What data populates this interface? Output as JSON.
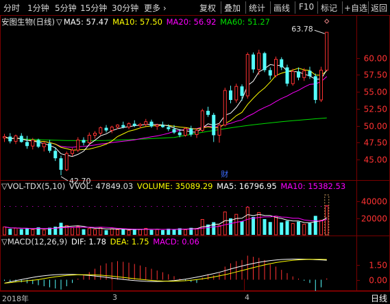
{
  "toolbar": {
    "left": [
      "分时",
      "1分钟",
      "5分钟",
      "15分钟",
      "30分钟",
      "更多 ›"
    ],
    "right": [
      "复权",
      "叠加",
      "统计",
      "画线",
      "F10",
      "标记",
      "+自选",
      "返回"
    ]
  },
  "main_panel": {
    "title": "安图生物(日线)",
    "marker": "▽",
    "ma5": "MA5: 57.47",
    "ma10": "MA10: 57.50",
    "ma20": "MA20: 56.92",
    "ma60": "MA60: 51.27",
    "high_label": "63.78",
    "low_label": "42.70",
    "event_marker": "财"
  },
  "volume_panel": {
    "title": "▽VOL-TDX(5,10)",
    "vvol": "VVOL: 47849.03",
    "volume": "VOLUME: 35089.29",
    "ma5": "MA5: 16796.95",
    "ma10": "MA10: 15382.53"
  },
  "macd_panel": {
    "title": "▽MACD(12,26,9)",
    "dif": "DIF: 1.78",
    "dea": "DEA: 1.75",
    "macd": "MACD: 0.06"
  },
  "date_axis": {
    "labels": [
      "2018年",
      "3",
      "4"
    ],
    "period": "日线"
  },
  "colors": {
    "up": "#ff3232",
    "down": "#54fcfc",
    "ma5": "#ffffff",
    "ma10": "#ffff00",
    "ma20": "#ff00ff",
    "ma60": "#00e000",
    "grid": "#7a0000",
    "axis_text": "#ff3232"
  },
  "chart_data": [
    {
      "type": "candlestick",
      "title": "安图生物(日线)",
      "y_ticks": [
        45.0,
        47.5,
        50.0,
        52.5,
        55.0,
        57.5,
        60.0
      ],
      "ylim": [
        43.5,
        64.5
      ],
      "ohlc": [
        [
          48.2,
          48.8,
          47.6,
          48.4
        ],
        [
          48.4,
          48.9,
          47.4,
          47.7
        ],
        [
          47.7,
          48.7,
          47.3,
          48.5
        ],
        [
          48.5,
          48.9,
          47.5,
          47.6
        ],
        [
          47.6,
          48.5,
          46.6,
          47.0
        ],
        [
          47.0,
          48.2,
          46.5,
          47.9
        ],
        [
          47.9,
          48.1,
          46.7,
          46.9
        ],
        [
          46.9,
          47.6,
          46.2,
          47.4
        ],
        [
          47.4,
          47.9,
          46.0,
          46.3
        ],
        [
          46.3,
          46.8,
          44.8,
          45.2
        ],
        [
          45.2,
          45.6,
          42.7,
          43.5
        ],
        [
          43.5,
          46.2,
          43.3,
          45.9
        ],
        [
          45.9,
          46.7,
          45.5,
          46.4
        ],
        [
          46.4,
          48.3,
          46.1,
          47.9
        ],
        [
          47.9,
          48.3,
          47.1,
          47.5
        ],
        [
          47.5,
          49.0,
          47.3,
          48.6
        ],
        [
          48.6,
          49.2,
          48.1,
          48.9
        ],
        [
          48.9,
          49.9,
          48.6,
          49.7
        ],
        [
          49.7,
          50.1,
          49.0,
          49.3
        ],
        [
          49.3,
          50.0,
          48.9,
          49.8
        ],
        [
          49.8,
          50.2,
          49.5,
          50.1
        ],
        [
          50.1,
          50.6,
          49.6,
          49.8
        ],
        [
          49.8,
          50.5,
          49.5,
          50.3
        ],
        [
          50.3,
          50.8,
          49.8,
          50.0
        ],
        [
          50.0,
          50.4,
          49.6,
          50.2
        ],
        [
          50.2,
          51.0,
          49.9,
          50.6
        ],
        [
          50.6,
          50.9,
          49.7,
          49.9
        ],
        [
          49.9,
          50.3,
          49.4,
          50.1
        ],
        [
          50.1,
          50.6,
          49.7,
          49.8
        ],
        [
          49.8,
          50.2,
          49.2,
          49.5
        ],
        [
          49.5,
          50.1,
          48.8,
          49.0
        ],
        [
          49.0,
          49.5,
          48.3,
          48.6
        ],
        [
          48.6,
          49.8,
          48.4,
          49.6
        ],
        [
          49.6,
          50.0,
          48.4,
          48.7
        ],
        [
          48.7,
          49.6,
          48.2,
          49.3
        ],
        [
          49.3,
          52.5,
          49.1,
          52.2
        ],
        [
          52.2,
          52.8,
          51.3,
          51.6
        ],
        [
          51.6,
          51.9,
          47.6,
          48.6
        ],
        [
          48.6,
          50.4,
          47.5,
          50.1
        ],
        [
          50.1,
          55.6,
          49.9,
          55.2
        ],
        [
          55.2,
          55.9,
          53.3,
          53.8
        ],
        [
          53.8,
          56.2,
          53.4,
          55.8
        ],
        [
          55.8,
          56.1,
          53.7,
          54.4
        ],
        [
          54.4,
          60.8,
          54.0,
          60.5
        ],
        [
          60.5,
          60.8,
          57.8,
          58.3
        ],
        [
          58.3,
          61.2,
          57.5,
          60.7
        ],
        [
          60.7,
          60.9,
          57.9,
          58.2
        ],
        [
          58.2,
          58.6,
          56.8,
          57.4
        ],
        [
          57.4,
          60.2,
          57.1,
          59.8
        ],
        [
          59.8,
          60.1,
          58.2,
          58.6
        ],
        [
          58.6,
          59.0,
          55.8,
          56.2
        ],
        [
          56.2,
          58.4,
          55.9,
          58.0
        ],
        [
          58.0,
          58.6,
          56.7,
          57.1
        ],
        [
          57.1,
          58.5,
          56.6,
          58.1
        ],
        [
          58.1,
          58.7,
          56.9,
          57.3
        ],
        [
          57.3,
          57.7,
          53.3,
          53.8
        ],
        [
          53.8,
          58.7,
          53.5,
          58.2
        ],
        [
          58.2,
          63.78,
          58.0,
          63.78
        ]
      ]
    },
    {
      "type": "bar",
      "title": "VOL-TDX(5,10)",
      "y_ticks": [
        20000,
        40000
      ],
      "ylim": [
        0,
        48500
      ],
      "values": [
        9500,
        7200,
        8100,
        6900,
        7800,
        6300,
        9000,
        5800,
        8600,
        9800,
        14500,
        11200,
        8700,
        9900,
        6700,
        7600,
        6400,
        8800,
        5600,
        7300,
        6200,
        6900,
        5400,
        7100,
        6600,
        7800,
        5900,
        6500,
        5700,
        7400,
        6800,
        7900,
        6100,
        8400,
        7600,
        18500,
        12400,
        15200,
        11300,
        27500,
        19800,
        24600,
        16300,
        33200,
        21500,
        26800,
        18900,
        15400,
        22300,
        14900,
        16800,
        13600,
        15900,
        12800,
        14200,
        22800,
        17600,
        35089
      ]
    },
    {
      "type": "bar",
      "title": "MACD(12,26,9)",
      "y_ticks": [
        0.0,
        1.5
      ],
      "ylim": [
        -1.0,
        3.0
      ],
      "values": [
        -0.05,
        -0.08,
        -0.1,
        -0.12,
        -0.16,
        -0.2,
        -0.25,
        -0.3,
        -0.35,
        -0.4,
        -0.45,
        -0.3,
        -0.15,
        0.05,
        0.2,
        0.35,
        0.5,
        0.65,
        0.75,
        0.8,
        0.85,
        0.82,
        0.78,
        0.72,
        0.65,
        0.58,
        0.5,
        0.42,
        0.34,
        0.25,
        0.16,
        0.05,
        -0.05,
        -0.1,
        -0.15,
        0.1,
        0.25,
        0.2,
        0.3,
        0.6,
        0.75,
        0.85,
        0.9,
        1.1,
        1.05,
        1.0,
        0.9,
        0.7,
        0.6,
        0.45,
        0.3,
        0.15,
        0.05,
        -0.05,
        -0.15,
        -0.55,
        -0.35,
        0.06
      ]
    }
  ]
}
